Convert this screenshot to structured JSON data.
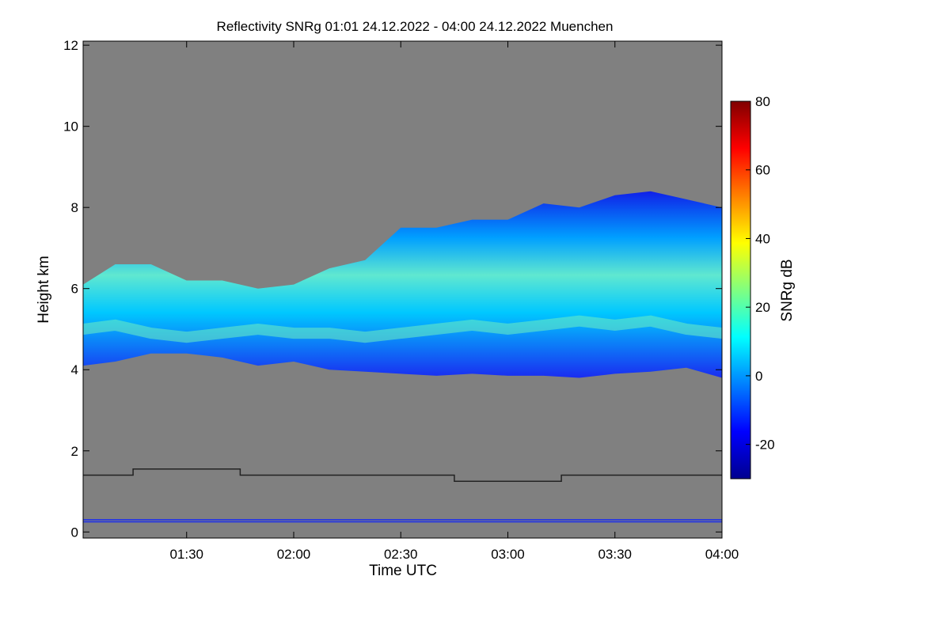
{
  "chart_data": {
    "type": "heatmap",
    "title": "Reflectivity SNRg   01:01 24.12.2022 - 04:00 24.12.2022 Muenchen",
    "xlabel": "Time UTC",
    "ylabel": "Height km",
    "xlim_minutes_utc": [
      61,
      240
    ],
    "ylim_km": [
      -0.15,
      12.1
    ],
    "x_ticks": [
      {
        "minute": 90,
        "label": "01:30"
      },
      {
        "minute": 120,
        "label": "02:00"
      },
      {
        "minute": 150,
        "label": "02:30"
      },
      {
        "minute": 180,
        "label": "03:00"
      },
      {
        "minute": 210,
        "label": "03:30"
      },
      {
        "minute": 240,
        "label": "04:00"
      }
    ],
    "y_ticks": [
      0,
      2,
      4,
      6,
      8,
      10,
      12
    ],
    "colorbar": {
      "label": "SNRg dB",
      "range": [
        -30,
        80
      ],
      "ticks": [
        -20,
        0,
        20,
        40,
        60,
        80
      ],
      "colors": [
        "#00008f",
        "#0000ff",
        "#0080ff",
        "#00ffff",
        "#80ff80",
        "#ffff00",
        "#ff8000",
        "#ff0000",
        "#800000"
      ]
    },
    "background_color": "#808080",
    "cloud_layer": {
      "time_minutes": [
        61,
        70,
        80,
        90,
        100,
        110,
        120,
        130,
        140,
        150,
        160,
        170,
        180,
        190,
        200,
        210,
        220,
        230,
        240
      ],
      "base_km": [
        4.1,
        4.2,
        4.4,
        4.4,
        4.3,
        4.1,
        4.2,
        4.0,
        3.95,
        3.9,
        3.85,
        3.9,
        3.85,
        3.85,
        3.8,
        3.9,
        3.95,
        4.05,
        3.8
      ],
      "top_km": [
        6.1,
        6.6,
        6.6,
        6.2,
        6.2,
        6.0,
        6.1,
        6.5,
        6.7,
        7.5,
        7.5,
        7.7,
        7.7,
        8.1,
        8.0,
        8.3,
        8.4,
        8.2,
        8.0
      ],
      "core_km": [
        5.0,
        5.1,
        4.9,
        4.8,
        4.9,
        5.0,
        4.9,
        4.9,
        4.8,
        4.9,
        5.0,
        5.1,
        5.0,
        5.1,
        5.2,
        5.1,
        5.2,
        5.0,
        4.9
      ]
    },
    "boundary_line": {
      "time_minutes": [
        61,
        75,
        75,
        105,
        105,
        165,
        165,
        195,
        195,
        240
      ],
      "height_km": [
        1.4,
        1.4,
        1.55,
        1.55,
        1.4,
        1.4,
        1.25,
        1.25,
        1.4,
        1.4
      ]
    },
    "ground_lines_km": [
      0.25,
      0.3
    ]
  }
}
